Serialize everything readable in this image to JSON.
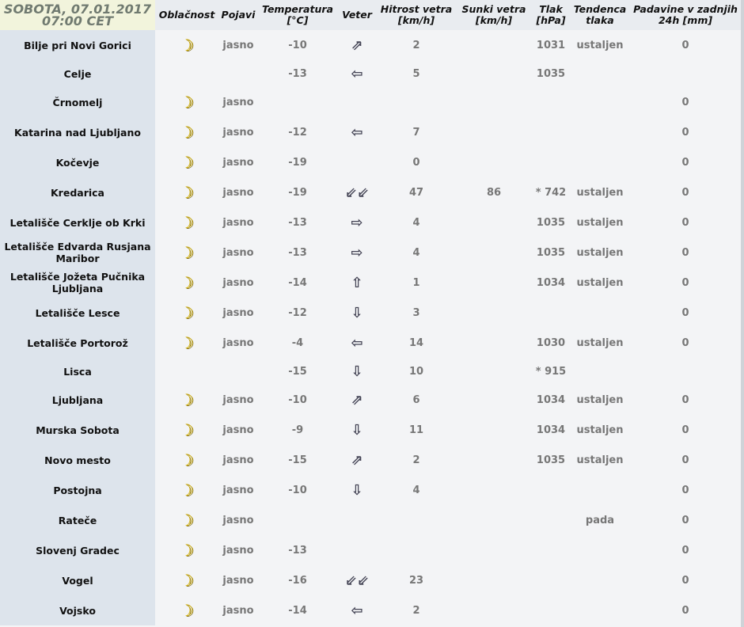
{
  "header": {
    "date": "SOBOTA, 07.01.2017",
    "time": "07:00 CET",
    "columns": [
      "Oblačnost",
      "Pojavi",
      "Temperatura [°C]",
      "Veter",
      "Hitrost vetra [km/h]",
      "Sunki vetra [km/h]",
      "Tlak [hPa]",
      "Tendenca tlaka",
      "Padavine v zadnjih 24h [mm]"
    ]
  },
  "colors": {
    "name_column": "#dde4ec",
    "date_header": "#f2f4dc",
    "moon": "#d4b000"
  },
  "rows": [
    {
      "name": "Bilje pri Novi Gorici",
      "cloud": "moon-icon",
      "phen": "jasno",
      "temp": "-10",
      "wind": "⇗",
      "speed": "2",
      "gust": "",
      "press": "1031",
      "trend": "ustaljen",
      "precip": "0"
    },
    {
      "name": "Celje",
      "cloud": "",
      "phen": "",
      "temp": "-13",
      "wind": "⇦",
      "speed": "5",
      "gust": "",
      "press": "1035",
      "trend": "",
      "precip": ""
    },
    {
      "name": "Črnomelj",
      "cloud": "moon-icon",
      "phen": "jasno",
      "temp": "",
      "wind": "",
      "speed": "",
      "gust": "",
      "press": "",
      "trend": "",
      "precip": "0"
    },
    {
      "name": "Katarina nad Ljubljano",
      "cloud": "moon-icon",
      "phen": "jasno",
      "temp": "-12",
      "wind": "⇦",
      "speed": "7",
      "gust": "",
      "press": "",
      "trend": "",
      "precip": "0"
    },
    {
      "name": "Kočevje",
      "cloud": "moon-icon",
      "phen": "jasno",
      "temp": "-19",
      "wind": "",
      "speed": "0",
      "gust": "",
      "press": "",
      "trend": "",
      "precip": "0"
    },
    {
      "name": "Kredarica",
      "cloud": "moon-icon",
      "phen": "jasno",
      "temp": "-19",
      "wind": "⇙⇙",
      "speed": "47",
      "gust": "86",
      "press": "* 742",
      "trend": "ustaljen",
      "precip": "0"
    },
    {
      "name": "Letališče Cerklje ob Krki",
      "cloud": "moon-icon",
      "phen": "jasno",
      "temp": "-13",
      "wind": "⇨",
      "speed": "4",
      "gust": "",
      "press": "1035",
      "trend": "ustaljen",
      "precip": "0"
    },
    {
      "name": "Letališče Edvarda Rusjana Maribor",
      "cloud": "moon-icon",
      "phen": "jasno",
      "temp": "-13",
      "wind": "⇨",
      "speed": "4",
      "gust": "",
      "press": "1035",
      "trend": "ustaljen",
      "precip": "0"
    },
    {
      "name": "Letališče Jožeta Pučnika Ljubljana",
      "cloud": "moon-icon",
      "phen": "jasno",
      "temp": "-14",
      "wind": "⇧",
      "speed": "1",
      "gust": "",
      "press": "1034",
      "trend": "ustaljen",
      "precip": "0"
    },
    {
      "name": "Letališče Lesce",
      "cloud": "moon-icon",
      "phen": "jasno",
      "temp": "-12",
      "wind": "⇩",
      "speed": "3",
      "gust": "",
      "press": "",
      "trend": "",
      "precip": "0"
    },
    {
      "name": "Letališče Portorož",
      "cloud": "moon-icon",
      "phen": "jasno",
      "temp": "-4",
      "wind": "⇦",
      "speed": "14",
      "gust": "",
      "press": "1030",
      "trend": "ustaljen",
      "precip": "0"
    },
    {
      "name": "Lisca",
      "cloud": "",
      "phen": "",
      "temp": "-15",
      "wind": "⇩",
      "speed": "10",
      "gust": "",
      "press": "* 915",
      "trend": "",
      "precip": ""
    },
    {
      "name": "Ljubljana",
      "cloud": "moon-icon",
      "phen": "jasno",
      "temp": "-10",
      "wind": "⇗",
      "speed": "6",
      "gust": "",
      "press": "1034",
      "trend": "ustaljen",
      "precip": "0"
    },
    {
      "name": "Murska Sobota",
      "cloud": "moon-icon",
      "phen": "jasno",
      "temp": "-9",
      "wind": "⇩",
      "speed": "11",
      "gust": "",
      "press": "1034",
      "trend": "ustaljen",
      "precip": "0"
    },
    {
      "name": "Novo mesto",
      "cloud": "moon-icon",
      "phen": "jasno",
      "temp": "-15",
      "wind": "⇗",
      "speed": "2",
      "gust": "",
      "press": "1035",
      "trend": "ustaljen",
      "precip": "0"
    },
    {
      "name": "Postojna",
      "cloud": "moon-icon",
      "phen": "jasno",
      "temp": "-10",
      "wind": "⇩",
      "speed": "4",
      "gust": "",
      "press": "",
      "trend": "",
      "precip": "0"
    },
    {
      "name": "Rateče",
      "cloud": "moon-icon",
      "phen": "jasno",
      "temp": "",
      "wind": "",
      "speed": "",
      "gust": "",
      "press": "",
      "trend": "pada",
      "precip": "0"
    },
    {
      "name": "Slovenj Gradec",
      "cloud": "moon-icon",
      "phen": "jasno",
      "temp": "-13",
      "wind": "",
      "speed": "",
      "gust": "",
      "press": "",
      "trend": "",
      "precip": "0"
    },
    {
      "name": "Vogel",
      "cloud": "moon-icon",
      "phen": "jasno",
      "temp": "-16",
      "wind": "⇙⇙",
      "speed": "23",
      "gust": "",
      "press": "",
      "trend": "",
      "precip": "0"
    },
    {
      "name": "Vojsko",
      "cloud": "moon-icon",
      "phen": "jasno",
      "temp": "-14",
      "wind": "⇦",
      "speed": "2",
      "gust": "",
      "press": "",
      "trend": "",
      "precip": "0"
    }
  ]
}
